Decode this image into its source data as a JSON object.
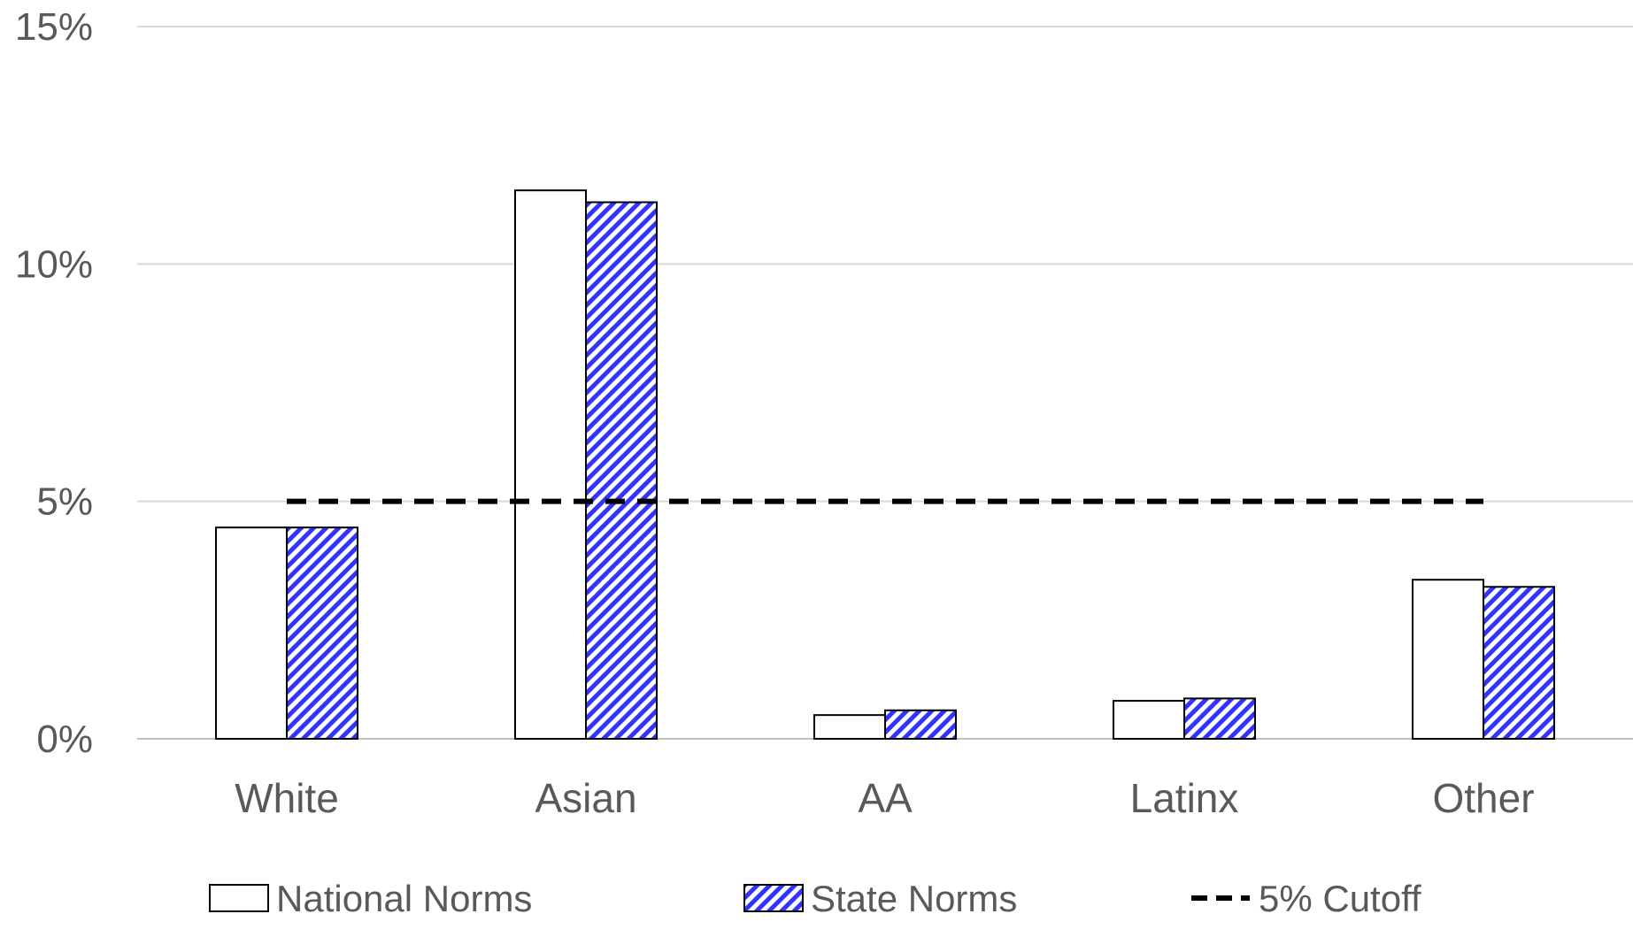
{
  "chart_data": {
    "type": "bar",
    "title": "",
    "xlabel": "",
    "ylabel": "",
    "ylim": [
      0,
      15
    ],
    "yticks": [
      {
        "value": 0,
        "label": "0%"
      },
      {
        "value": 5,
        "label": "5%"
      },
      {
        "value": 10,
        "label": "10%"
      },
      {
        "value": 15,
        "label": "15%"
      }
    ],
    "categories": [
      "White",
      "Asian",
      "AA",
      "Latinx",
      "Other"
    ],
    "series": [
      {
        "name": "National Norms",
        "values": [
          4.45,
          11.55,
          0.5,
          0.8,
          3.35
        ],
        "fill": "#ffffff",
        "stroke": "#000000"
      },
      {
        "name": "State Norms",
        "values": [
          4.45,
          11.3,
          0.6,
          0.85,
          3.2
        ],
        "fill": "hatch",
        "stroke": "#000000",
        "hatch_color": "#3333ff"
      }
    ],
    "reference_line": {
      "name": "5% Cutoff",
      "value": 5,
      "style": "dashed",
      "color": "#000000"
    },
    "grid": true,
    "legend_position": "bottom"
  }
}
